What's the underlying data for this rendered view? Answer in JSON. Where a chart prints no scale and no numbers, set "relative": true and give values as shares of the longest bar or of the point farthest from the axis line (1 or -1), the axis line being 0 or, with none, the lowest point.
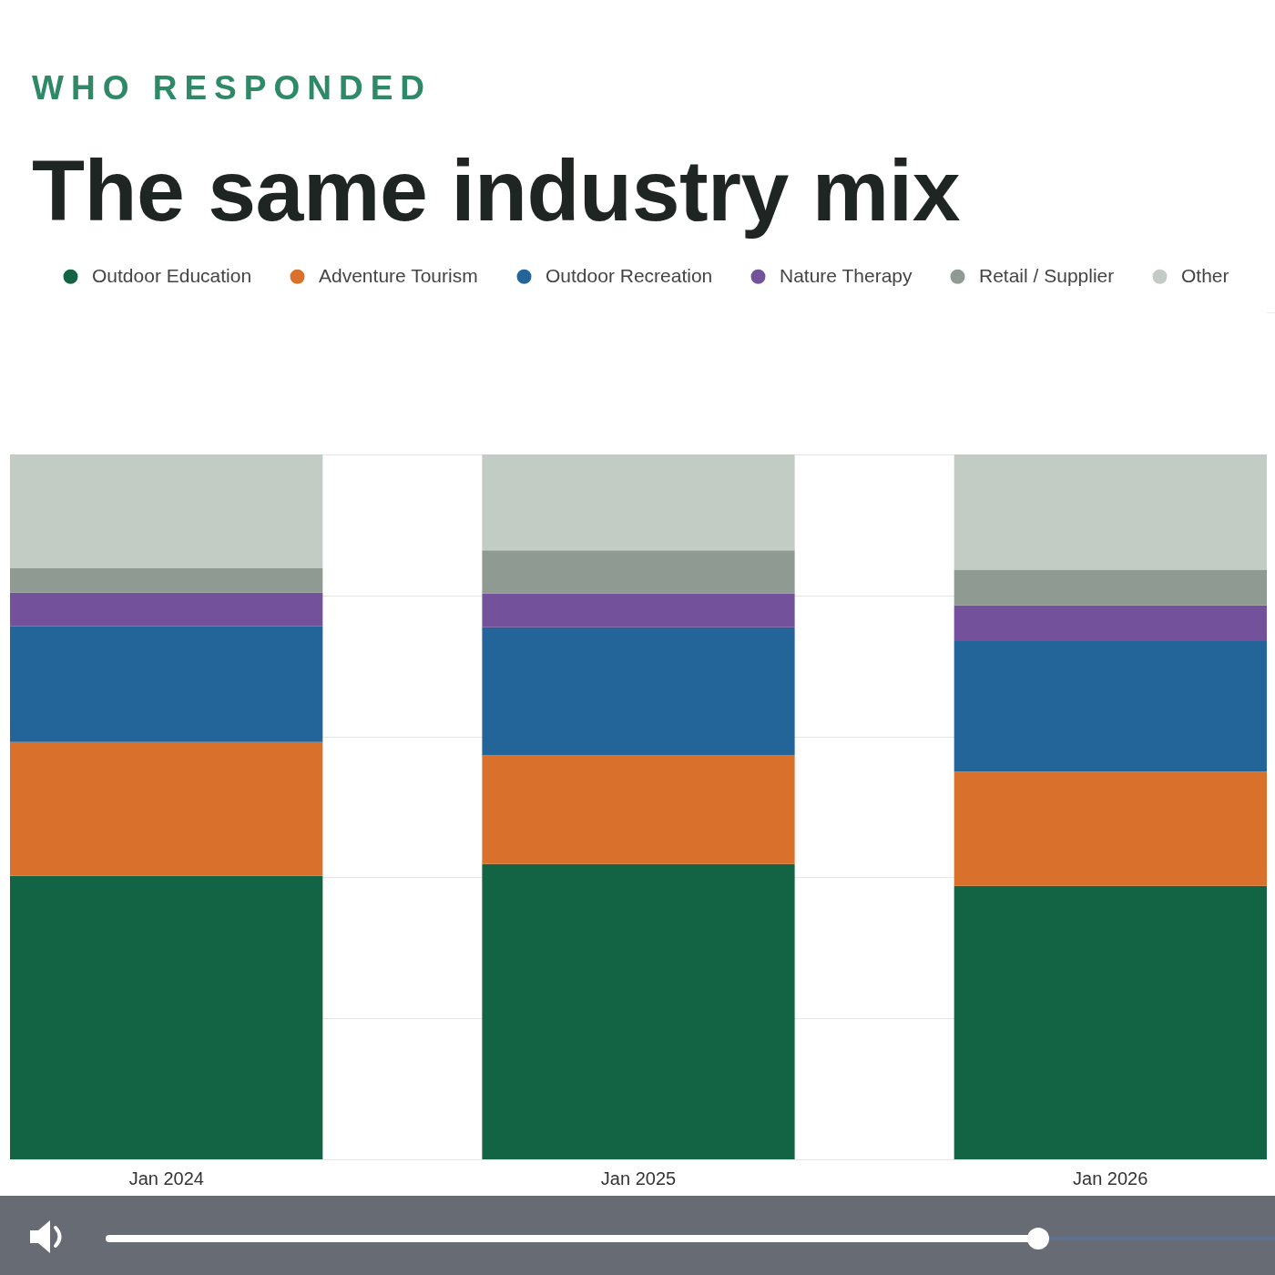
{
  "chart_data": {
    "type": "bar",
    "title": "The same industry mix",
    "subtitle": "WHO RESPONDED",
    "categories": [
      "Jan 2024",
      "Jan 2025",
      "Jan 2026"
    ],
    "series": [
      {
        "name": "Outdoor Education",
        "color": "#136445",
        "values": [
          0.402,
          0.419,
          0.388
        ]
      },
      {
        "name": "Adventure Tourism",
        "color": "#d9702b",
        "values": [
          0.19,
          0.154,
          0.162
        ]
      },
      {
        "name": "Outdoor Recreation",
        "color": "#236599",
        "values": [
          0.164,
          0.182,
          0.185
        ]
      },
      {
        "name": "Nature Therapy",
        "color": "#74519b",
        "values": [
          0.048,
          0.048,
          0.051
        ]
      },
      {
        "name": "Retail / Supplier",
        "color": "#8e9a92",
        "values": [
          0.035,
          0.061,
          0.05
        ]
      },
      {
        "name": "Other",
        "color": "#c3cbc5",
        "values": [
          0.161,
          0.136,
          0.164
        ]
      }
    ],
    "stacked": true,
    "relative": true,
    "grid": "y",
    "legend": "top"
  }
}
